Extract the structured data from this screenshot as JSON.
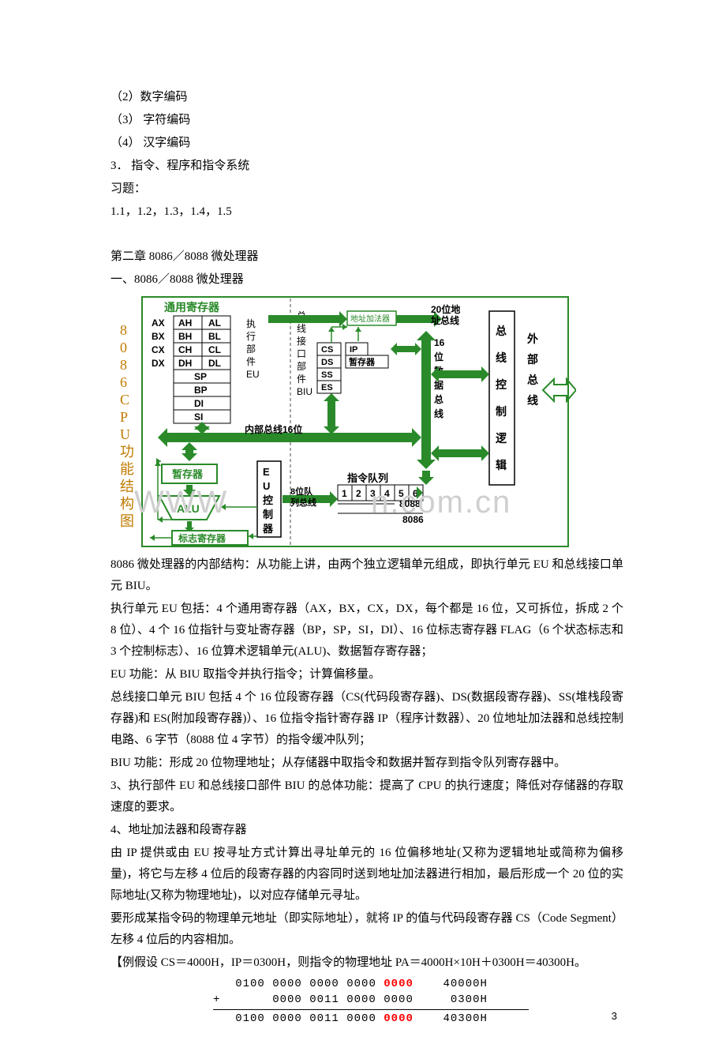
{
  "header_lines": {
    "l1": "（2）数字编码",
    "l2": "（3） 字符编码",
    "l3": "（4） 汉字编码",
    "l4": "3． 指令、程序和指令系统",
    "l5": "习题：",
    "l6": "1.1，1.2，1.3，1.4，1.5"
  },
  "chapter": {
    "title": "第二章  8086／8088 微处理器",
    "sub": "一、8086／8088 微处理器"
  },
  "diagram": {
    "side_label": "8086CPU功能结构图",
    "colors": {
      "green": "#2a8a2a",
      "light_green": "#e6f4e6",
      "black": "#000000",
      "dashed": "#7a7a7a",
      "border": "#000000",
      "orange": "#bf7a00"
    },
    "block_title": "通用寄存器",
    "regs_general": [
      [
        "AX",
        "AH",
        "AL"
      ],
      [
        "BX",
        "BH",
        "BL"
      ],
      [
        "CX",
        "CH",
        "CL"
      ],
      [
        "DX",
        "DH",
        "DL"
      ]
    ],
    "regs_ptr": [
      "SP",
      "BP",
      "DI",
      "SI"
    ],
    "eu_labels": [
      "执",
      "行",
      "部",
      "件",
      "EU"
    ],
    "biu_labels": [
      "总",
      "线",
      "接",
      "口",
      "部",
      "件",
      "BIU"
    ],
    "seg_regs_left": [
      "CS",
      "DS",
      "SS",
      "ES"
    ],
    "seg_regs_right": [
      "IP",
      "暂存器"
    ],
    "addr_adder": "地址加法器",
    "addr_bus_label": [
      "20位地",
      "址总线"
    ],
    "bus_ctrl_label": [
      "总",
      "线",
      "控",
      "制",
      "逻",
      "辑"
    ],
    "ext_bus_label": [
      "外",
      "部",
      "总",
      "线"
    ],
    "sixteen_data_bus": [
      "16",
      "位",
      "数",
      "据",
      "总",
      "线"
    ],
    "inner_bus_label": "内部总线16位",
    "temp_reg": "暂存器",
    "alu": "ALU",
    "flag_reg": "标志寄存器",
    "eu_ctrl": [
      "E",
      "U",
      "控",
      "制",
      "器"
    ],
    "queue_bus": [
      "8位队",
      "列总线"
    ],
    "instr_queue_label": "指令队列",
    "queue_cells": [
      "1",
      "2",
      "3",
      "4",
      "5",
      "6"
    ],
    "queue_8088": "8088",
    "queue_8086": "8086"
  },
  "body": {
    "p1": "8086 微处理器的内部结构：从功能上讲，由两个独立逻辑单元组成，即执行单元 EU 和总线接口单元 BIU。",
    "p2": "执行单元 EU 包括：4 个通用寄存器（AX，BX，CX，DX，每个都是 16 位，又可拆位，拆成 2 个 8 位）、4 个 16 位指针与变址寄存器（BP，SP，SI，DI）、16 位标志寄存器 FLAG（6 个状态标志和 3 个控制标志）、16 位算术逻辑单元(ALU)、数据暂存寄存器；",
    "p3": "EU 功能：从 BIU 取指令并执行指令；计算偏移量。",
    "p4": "总线接口单元 BIU 包括 4 个 16 位段寄存器（CS(代码段寄存器)、DS(数据段寄存器)、SS(堆栈段寄存器)和 ES(附加段寄存器)）、16 位指令指针寄存器 IP（程序计数器）、20 位地址加法器和总线控制电路、6 字节（8088 位 4 字节）的指令缓冲队列；",
    "p5": "BIU 功能：形成 20 位物理地址；从存储器中取指令和数据并暂存到指令队列寄存器中。",
    "p6": "3、执行部件 EU 和总线接口部件 BIU 的总体功能：提高了 CPU 的执行速度；降低对存储器的存取速度的要求。",
    "p7": "4、地址加法器和段寄存器",
    "p8": "由 IP 提供或由 EU 按寻址方式计算出寻址单元的 16 位偏移地址(又称为逻辑地址或简称为偏移量)，将它与左移 4 位后的段寄存器的内容同时送到地址加法器进行相加，最后形成一个 20 位的实际地址(又称为物理地址)，以对应存储单元寻址。",
    "p9": "要形成某指令码的物理单元地址（即实际地址），就将 IP 的值与代码段寄存器 CS（Code Segment）左移 4 位后的内容相加。",
    "p10": "【例假设 CS＝4000H，IP＝0300H，则指令的物理地址 PA＝4000H×10H＋0300H＝40300H。"
  },
  "addition": {
    "row1_bits": "0100 0000 0000 0000",
    "row1_bits_red": "0000",
    "row1_hex": "40000H",
    "row2_bits": "0000 0011 0000 0000",
    "row2_hex": "0300H",
    "row3_bits": "0100 0000 0011 0000",
    "row3_bits_red": "0000",
    "row3_hex": "40300H",
    "plus": "+"
  },
  "page_number": "3",
  "watermark": {
    "t1": "WWW",
    "t2": "n.com.cn"
  }
}
